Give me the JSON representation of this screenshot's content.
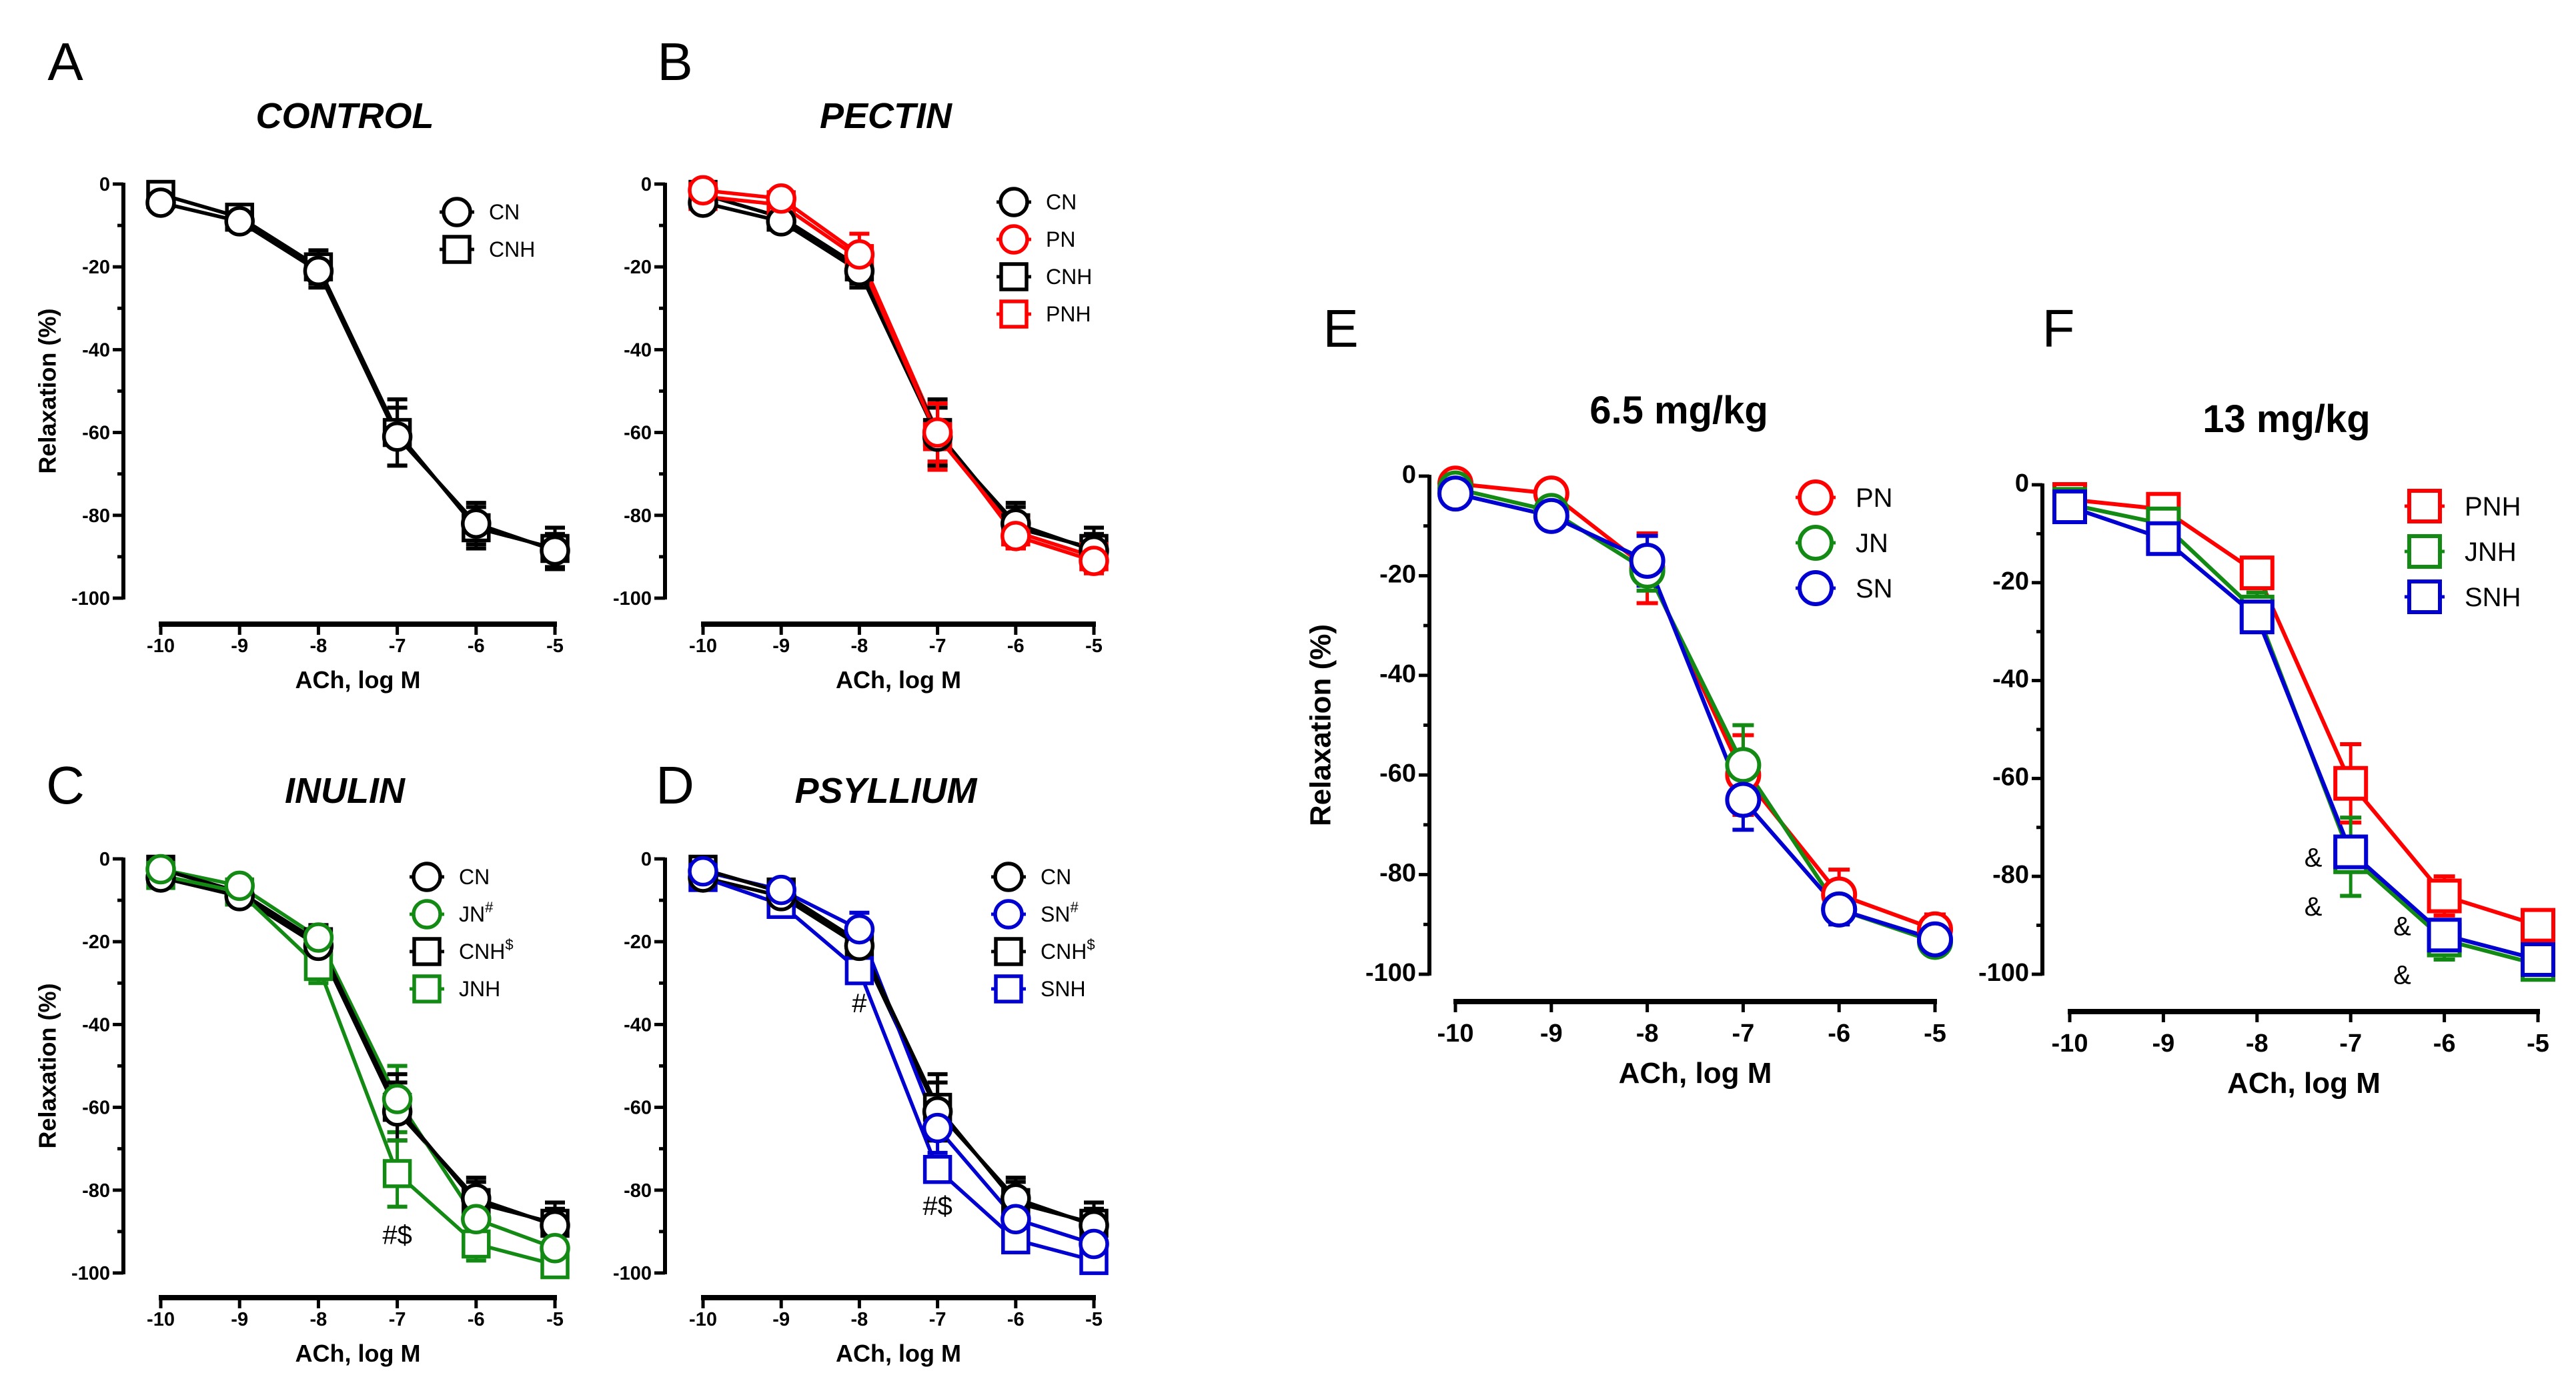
{
  "figure": {
    "x_ticks": [
      -10,
      -9,
      -8,
      -7,
      -6,
      -5
    ],
    "y_ticks": [
      0,
      -20,
      -40,
      -60,
      -80,
      -100
    ]
  },
  "colors": {
    "black": "#000000",
    "red": "#ff0000",
    "green": "#138a13",
    "blue": "#0000d0"
  },
  "chart_data": [
    {
      "id": "A",
      "letter": "A",
      "title": "CONTROL",
      "type": "line",
      "xlabel": "ACh, log M",
      "ylabel": "Relaxation (%)",
      "xlim": [
        -10,
        -5
      ],
      "ylim": [
        -100,
        0
      ],
      "legend": "top-right",
      "x": [
        -10,
        -9,
        -8,
        -7,
        -6,
        -5
      ],
      "series": [
        {
          "name": "CN",
          "sup": "",
          "color": "#000000",
          "marker": "circle",
          "values": [
            -4.5,
            -9,
            -21,
            -61,
            -82,
            -88.5
          ],
          "err": [
            1.5,
            1,
            4,
            7,
            5,
            4
          ]
        },
        {
          "name": "CNH",
          "sup": "",
          "color": "#000000",
          "marker": "square",
          "values": [
            -2.5,
            -8,
            -20,
            -60,
            -83,
            -88
          ],
          "err": [
            1.5,
            1,
            4,
            8,
            5,
            5
          ]
        }
      ],
      "annotations": []
    },
    {
      "id": "B",
      "letter": "B",
      "title": "PECTIN",
      "type": "line",
      "xlabel": "ACh, log M",
      "ylabel": "",
      "xlim": [
        -10,
        -5
      ],
      "ylim": [
        -100,
        0
      ],
      "legend": "top-right",
      "x": [
        -10,
        -9,
        -8,
        -7,
        -6,
        -5
      ],
      "series": [
        {
          "name": "CN",
          "sup": "",
          "color": "#000000",
          "marker": "circle",
          "values": [
            -4.5,
            -9,
            -21,
            -61,
            -82,
            -88.5
          ],
          "err": [
            1.5,
            1,
            4,
            7,
            5,
            4
          ]
        },
        {
          "name": "PN",
          "sup": "",
          "color": "#ff0000",
          "marker": "circle",
          "values": [
            -1.5,
            -3.5,
            -17,
            -60,
            -85,
            -91
          ],
          "err": [
            1,
            1,
            5,
            7,
            3,
            3
          ]
        },
        {
          "name": "CNH",
          "sup": "",
          "color": "#000000",
          "marker": "square",
          "values": [
            -2.5,
            -8,
            -20,
            -60,
            -83,
            -88
          ],
          "err": [
            1.5,
            1,
            4,
            8,
            5,
            5
          ]
        },
        {
          "name": "PNH",
          "sup": "",
          "color": "#ff0000",
          "marker": "square",
          "values": [
            -3,
            -5,
            -18,
            -61,
            -84,
            -90
          ],
          "err": [
            1,
            1,
            3,
            8,
            4,
            3
          ]
        }
      ],
      "annotations": []
    },
    {
      "id": "C",
      "letter": "C",
      "title": "INULIN",
      "type": "line",
      "xlabel": "ACh, log M",
      "ylabel": "Relaxation (%)",
      "xlim": [
        -10,
        -5
      ],
      "ylim": [
        -100,
        0
      ],
      "legend": "top-right",
      "x": [
        -10,
        -9,
        -8,
        -7,
        -6,
        -5
      ],
      "series": [
        {
          "name": "CN",
          "sup": "",
          "color": "#000000",
          "marker": "circle",
          "values": [
            -4.5,
            -9,
            -21,
            -61,
            -82,
            -88.5
          ],
          "err": [
            1.5,
            1,
            4,
            7,
            5,
            4
          ]
        },
        {
          "name": "JN",
          "sup": "#",
          "color": "#138a13",
          "marker": "circle",
          "values": [
            -2.5,
            -6.5,
            -19,
            -58,
            -87,
            -94
          ],
          "err": [
            1.5,
            1,
            3,
            8,
            3,
            2
          ]
        },
        {
          "name": "CNH",
          "sup": "$",
          "color": "#000000",
          "marker": "square",
          "values": [
            -2.5,
            -8,
            -20,
            -60,
            -83,
            -88
          ],
          "err": [
            1.5,
            1,
            4,
            8,
            5,
            5
          ]
        },
        {
          "name": "JNH",
          "sup": "",
          "color": "#138a13",
          "marker": "square",
          "values": [
            -4,
            -8,
            -26,
            -76,
            -93,
            -98
          ],
          "err": [
            1.5,
            1,
            4,
            8,
            4,
            2
          ]
        }
      ],
      "annotations": [
        {
          "text": "#$",
          "x": -7,
          "y": -93
        }
      ]
    },
    {
      "id": "D",
      "letter": "D",
      "title": "PSYLLIUM",
      "type": "line",
      "xlabel": "ACh, log M",
      "ylabel": "",
      "xlim": [
        -10,
        -5
      ],
      "ylim": [
        -100,
        0
      ],
      "legend": "top-right",
      "x": [
        -10,
        -9,
        -8,
        -7,
        -6,
        -5
      ],
      "series": [
        {
          "name": "CN",
          "sup": "",
          "color": "#000000",
          "marker": "circle",
          "values": [
            -4.5,
            -9,
            -21,
            -61,
            -82,
            -88.5
          ],
          "err": [
            1.5,
            1,
            4,
            7,
            5,
            4
          ]
        },
        {
          "name": "SN",
          "sup": "#",
          "color": "#0000d0",
          "marker": "circle",
          "values": [
            -3,
            -7.5,
            -17,
            -65,
            -87,
            -93
          ],
          "err": [
            1.5,
            1,
            4,
            6,
            3,
            2
          ]
        },
        {
          "name": "CNH",
          "sup": "$",
          "color": "#000000",
          "marker": "square",
          "values": [
            -2.5,
            -8,
            -20,
            -60,
            -83,
            -88
          ],
          "err": [
            1.5,
            1,
            4,
            8,
            5,
            5
          ]
        },
        {
          "name": "SNH",
          "sup": "",
          "color": "#0000d0",
          "marker": "square",
          "values": [
            -4.5,
            -11,
            -27,
            -75,
            -92,
            -97
          ],
          "err": [
            1.5,
            1,
            2,
            3,
            2,
            2
          ]
        }
      ],
      "annotations": [
        {
          "text": "#",
          "x": -8,
          "y": -37
        },
        {
          "text": "#$",
          "x": -7,
          "y": -86
        }
      ]
    },
    {
      "id": "E",
      "letter": "E",
      "title": "6.5 mg/kg",
      "type": "line",
      "xlabel": "ACh, log M",
      "ylabel": "Relaxation (%)",
      "xlim": [
        -10,
        -5
      ],
      "ylim": [
        -100,
        0
      ],
      "legend": "top-right",
      "x": [
        -10,
        -9,
        -8,
        -7,
        -6,
        -5
      ],
      "series": [
        {
          "name": "PN",
          "sup": "",
          "color": "#ff0000",
          "marker": "circle",
          "values": [
            -1.5,
            -3.5,
            -18.5,
            -60,
            -84,
            -91
          ],
          "err": [
            1,
            1,
            7,
            8,
            5,
            3
          ]
        },
        {
          "name": "JN",
          "sup": "",
          "color": "#138a13",
          "marker": "circle",
          "values": [
            -2.5,
            -7,
            -19,
            -58,
            -87,
            -93.5
          ],
          "err": [
            1,
            1,
            4,
            8,
            3,
            2
          ]
        },
        {
          "name": "SN",
          "sup": "",
          "color": "#0000d0",
          "marker": "circle",
          "values": [
            -3.5,
            -8,
            -17,
            -65,
            -87,
            -93
          ],
          "err": [
            1,
            1,
            5,
            6,
            3,
            2
          ]
        }
      ],
      "annotations": []
    },
    {
      "id": "F",
      "letter": "F",
      "title": "13 mg/kg",
      "type": "line",
      "xlabel": "ACh, log M",
      "ylabel": "",
      "xlim": [
        -10,
        -5
      ],
      "ylim": [
        -100,
        0
      ],
      "legend": "top-right",
      "x": [
        -10,
        -9,
        -8,
        -7,
        -6,
        -5
      ],
      "series": [
        {
          "name": "PNH",
          "sup": "",
          "color": "#ff0000",
          "marker": "square",
          "values": [
            -3,
            -5,
            -18,
            -61,
            -84,
            -90
          ],
          "err": [
            1,
            1,
            3,
            8,
            4,
            3
          ]
        },
        {
          "name": "JNH",
          "sup": "",
          "color": "#138a13",
          "marker": "square",
          "values": [
            -4,
            -8,
            -26,
            -76,
            -93,
            -98
          ],
          "err": [
            1.5,
            1,
            4,
            8,
            4,
            2
          ]
        },
        {
          "name": "SNH",
          "sup": "",
          "color": "#0000d0",
          "marker": "square",
          "values": [
            -4.5,
            -11,
            -27,
            -75,
            -92,
            -97
          ],
          "err": [
            1.5,
            1,
            2,
            3,
            2,
            2
          ]
        }
      ],
      "annotations": [
        {
          "text": "&",
          "x": -7.4,
          "y": -78
        },
        {
          "text": "&",
          "x": -7.4,
          "y": -88
        },
        {
          "text": "&",
          "x": -6.45,
          "y": -92
        },
        {
          "text": "&",
          "x": -6.45,
          "y": -102
        }
      ]
    }
  ]
}
